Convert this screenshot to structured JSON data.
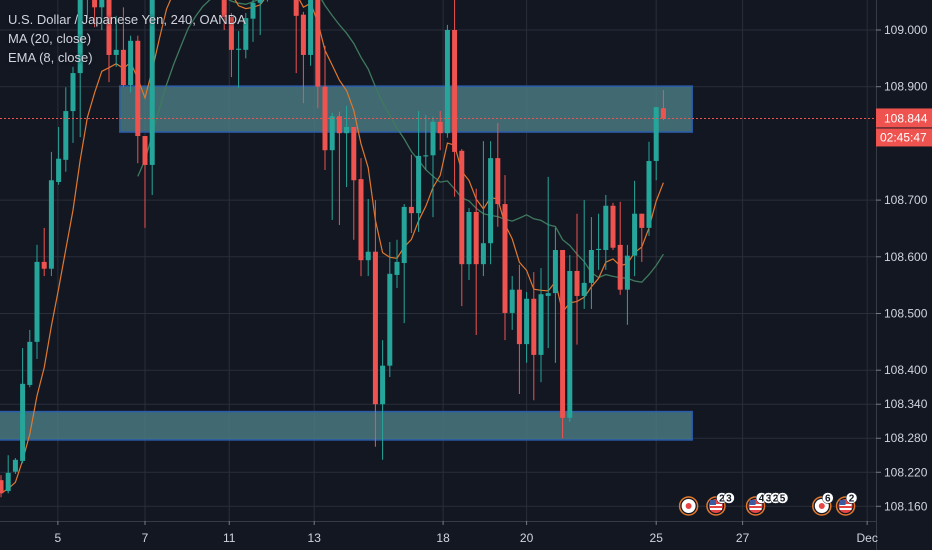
{
  "legend": {
    "symbol": "U.S. Dollar / Japanese Yen, 240, OANDA",
    "ma": "MA (20, close)",
    "ema": "EMA (8, close)"
  },
  "colors": {
    "background": "#131722",
    "grid": "#2a2e39",
    "up": "#26a69a",
    "down": "#ef5350",
    "ma": "#3f7a5e",
    "ema": "#e0782e",
    "zone_fill": "#4a7880",
    "zone_border": "#2a5caa",
    "price_line": "#ef5350"
  },
  "chart_data": {
    "type": "candlestick",
    "title": "U.S. Dollar / Japanese Yen, 240, OANDA",
    "ylim": [
      108.13,
      109.053
    ],
    "y_ticks": [
      "109.000",
      "108.900",
      "108.700",
      "108.600",
      "108.500",
      "108.400",
      "108.340",
      "108.280",
      "108.220",
      "108.160"
    ],
    "x_ticks": [
      {
        "label": "5",
        "bar": 7.9
      },
      {
        "label": "7",
        "bar": 20
      },
      {
        "label": "11",
        "bar": 31.7
      },
      {
        "label": "13",
        "bar": 43.5
      },
      {
        "label": "18",
        "bar": 61.4
      },
      {
        "label": "20",
        "bar": 73
      },
      {
        "label": "25",
        "bar": 91
      },
      {
        "label": "27",
        "bar": 103
      },
      {
        "label": "Dec",
        "bar": 120.3
      }
    ],
    "bar_range": [
      -0.2,
      121.5
    ],
    "candles_ohlc": [
      [
        108.206,
        108.215,
        108.176,
        108.183
      ],
      [
        108.187,
        108.25,
        108.183,
        108.219
      ],
      [
        108.221,
        108.245,
        108.217,
        108.242
      ],
      [
        108.24,
        108.439,
        108.236,
        108.376
      ],
      [
        108.374,
        108.471,
        108.37,
        108.45
      ],
      [
        108.45,
        108.621,
        108.42,
        108.591
      ],
      [
        108.591,
        108.651,
        108.566,
        108.579
      ],
      [
        108.579,
        108.785,
        108.566,
        108.735
      ],
      [
        108.732,
        108.829,
        108.727,
        108.773
      ],
      [
        108.771,
        108.899,
        108.75,
        108.857
      ],
      [
        108.857,
        108.935,
        108.801,
        108.924
      ],
      [
        108.924,
        109.1,
        108.811,
        109.08
      ],
      [
        109.08,
        109.14,
        109.02,
        109.11
      ],
      [
        109.11,
        109.13,
        109.005,
        109.04
      ],
      [
        109.04,
        109.1,
        109.0,
        109.06
      ],
      [
        109.06,
        109.08,
        108.908,
        108.956
      ],
      [
        108.956,
        109.025,
        108.935,
        108.965
      ],
      [
        108.965,
        109.04,
        108.9,
        108.903
      ],
      [
        108.903,
        108.99,
        108.89,
        108.981
      ],
      [
        108.981,
        108.99,
        108.765,
        108.813
      ],
      [
        108.813,
        108.813,
        108.651,
        108.762
      ],
      [
        108.762,
        109.12,
        108.709,
        109.1
      ],
      [
        109.1,
        109.2,
        109.08,
        109.18
      ],
      [
        109.18,
        109.26,
        109.12,
        109.22
      ],
      [
        109.22,
        109.3,
        109.15,
        109.17
      ],
      [
        109.17,
        109.25,
        109.1,
        109.23
      ],
      [
        109.23,
        109.31,
        109.16,
        109.2
      ],
      [
        109.2,
        109.26,
        109.12,
        109.15
      ],
      [
        109.15,
        109.2,
        109.09,
        109.12
      ],
      [
        109.12,
        109.18,
        109.07,
        109.1
      ],
      [
        109.1,
        109.15,
        109.07,
        109.08
      ],
      [
        109.08,
        109.1,
        109.0,
        109.023
      ],
      [
        109.023,
        109.03,
        108.917,
        108.965
      ],
      [
        108.965,
        108.998,
        108.898,
        108.967
      ],
      [
        108.965,
        109.03,
        108.95,
        109.021
      ],
      [
        109.02,
        109.06,
        108.979,
        109.048
      ],
      [
        109.048,
        109.08,
        108.991,
        109.06
      ],
      [
        109.06,
        109.15,
        109.05,
        109.12
      ],
      [
        109.12,
        109.18,
        109.07,
        109.09
      ],
      [
        109.09,
        109.14,
        109.06,
        109.11
      ],
      [
        109.11,
        109.13,
        109.06,
        109.07
      ],
      [
        109.07,
        109.09,
        108.924,
        109.025
      ],
      [
        109.027,
        109.032,
        108.871,
        108.956
      ],
      [
        108.956,
        109.1,
        108.937,
        109.07
      ],
      [
        109.07,
        109.09,
        108.862,
        108.9
      ],
      [
        108.9,
        108.972,
        108.753,
        108.788
      ],
      [
        108.788,
        108.854,
        108.665,
        108.848
      ],
      [
        108.848,
        108.856,
        108.656,
        108.818
      ],
      [
        108.818,
        108.866,
        108.723,
        108.829
      ],
      [
        108.829,
        108.829,
        108.63,
        108.735
      ],
      [
        108.737,
        108.774,
        108.566,
        108.594
      ],
      [
        108.594,
        108.702,
        108.566,
        108.609
      ],
      [
        108.609,
        108.7,
        108.265,
        108.34
      ],
      [
        108.34,
        108.453,
        108.242,
        108.408
      ],
      [
        108.408,
        108.626,
        108.388,
        108.57
      ],
      [
        108.568,
        108.63,
        108.545,
        108.591
      ],
      [
        108.589,
        108.693,
        108.483,
        108.688
      ],
      [
        108.688,
        108.78,
        108.642,
        108.677
      ],
      [
        108.677,
        108.857,
        108.644,
        108.778
      ],
      [
        108.777,
        108.85,
        108.753,
        108.779
      ],
      [
        108.779,
        108.847,
        108.67,
        108.838
      ],
      [
        108.838,
        108.857,
        108.788,
        108.818
      ],
      [
        108.818,
        109.009,
        108.81,
        109.0
      ],
      [
        109.0,
        109.06,
        108.706,
        108.785
      ],
      [
        108.787,
        108.79,
        108.513,
        108.587
      ],
      [
        108.587,
        108.686,
        108.559,
        108.679
      ],
      [
        108.679,
        108.72,
        108.462,
        108.587
      ],
      [
        108.587,
        108.804,
        108.566,
        108.624
      ],
      [
        108.624,
        108.804,
        108.587,
        108.774
      ],
      [
        108.774,
        108.836,
        108.653,
        108.693
      ],
      [
        108.693,
        108.744,
        108.453,
        108.501
      ],
      [
        108.501,
        108.566,
        108.471,
        108.542
      ],
      [
        108.542,
        108.586,
        108.358,
        108.446
      ],
      [
        108.446,
        108.538,
        108.413,
        108.526
      ],
      [
        108.526,
        108.573,
        108.347,
        108.427
      ],
      [
        108.427,
        108.58,
        108.379,
        108.534
      ],
      [
        108.531,
        108.741,
        108.439,
        108.536
      ],
      [
        108.536,
        108.651,
        108.413,
        108.612
      ],
      [
        108.612,
        108.612,
        108.28,
        108.316
      ],
      [
        108.316,
        108.603,
        108.309,
        108.575
      ],
      [
        108.575,
        108.676,
        108.445,
        108.531
      ],
      [
        108.531,
        108.7,
        108.508,
        108.554
      ],
      [
        108.554,
        108.67,
        108.508,
        108.612
      ],
      [
        108.612,
        108.676,
        108.577,
        108.614
      ],
      [
        108.612,
        108.709,
        108.577,
        108.69
      ],
      [
        108.69,
        108.695,
        108.612,
        108.616
      ],
      [
        108.621,
        108.697,
        108.533,
        108.542
      ],
      [
        108.542,
        108.621,
        108.48,
        108.602
      ],
      [
        108.602,
        108.734,
        108.566,
        108.676
      ],
      [
        108.676,
        108.676,
        108.591,
        108.651
      ],
      [
        108.651,
        108.803,
        108.637,
        108.769
      ],
      [
        108.769,
        108.864,
        108.735,
        108.864
      ],
      [
        108.862,
        108.894,
        108.841,
        108.844
      ]
    ],
    "indicators": [
      {
        "name": "MA (20, close)",
        "period": 20
      },
      {
        "name": "EMA (8, close)",
        "period": 8
      }
    ],
    "zones": [
      {
        "name": "resistance-zone",
        "from_bar": 16.5,
        "to_bar": 96,
        "top": 108.901,
        "bottom": 108.82
      },
      {
        "name": "support-zone",
        "from_bar": -1,
        "to_bar": 96,
        "top": 108.327,
        "bottom": 108.277
      }
    ],
    "last_price": "108.844",
    "last_price_value": 108.844,
    "countdown": "02:45:47",
    "events": [
      {
        "type": "jp",
        "bar": 95.5,
        "badge": ""
      },
      {
        "type": "us",
        "bar": 99.3,
        "badge": "2 3"
      },
      {
        "type": "us",
        "bar": 104.8,
        "badge": "4 3 2 5"
      },
      {
        "type": "jp",
        "bar": 114,
        "badge": "6"
      },
      {
        "type": "us",
        "bar": 117.3,
        "badge": "2"
      }
    ]
  }
}
